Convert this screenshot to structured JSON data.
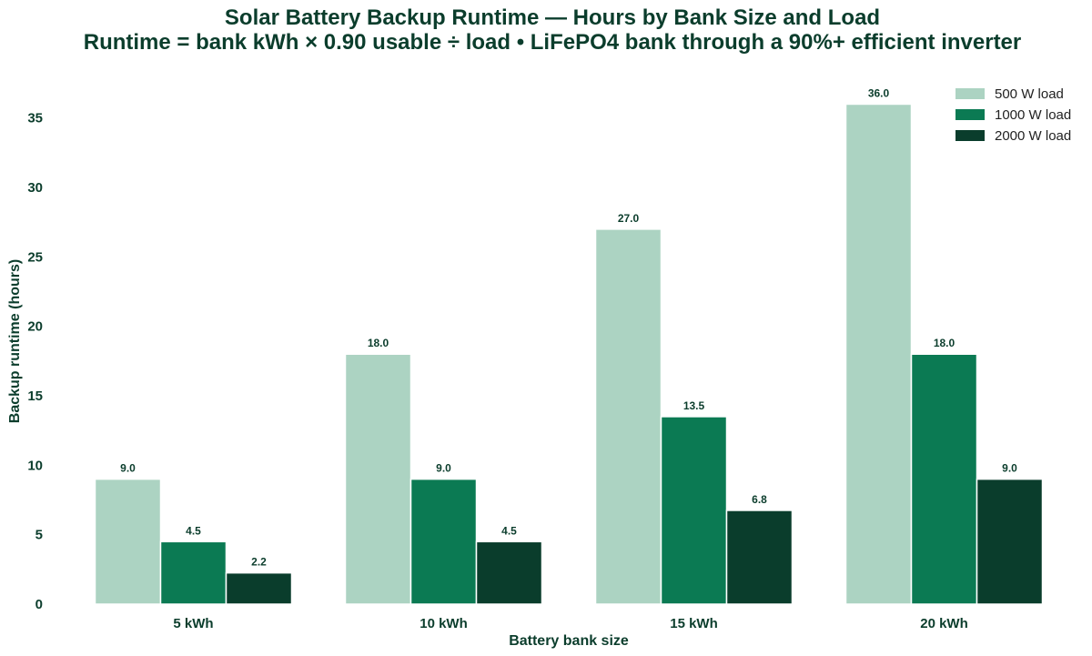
{
  "chart_data": {
    "type": "bar",
    "title": "Solar Battery Backup Runtime — Hours by Bank Size and Load",
    "subtitle": "Runtime = bank kWh × 0.90 usable ÷ load  •  LiFePO4 bank through a 90%+ efficient inverter",
    "xlabel": "Battery bank size",
    "ylabel": "Backup runtime (hours)",
    "categories": [
      "5 kWh",
      "10 kWh",
      "15 kWh",
      "20 kWh"
    ],
    "ylim": [
      0,
      37.8
    ],
    "yticks": [
      0,
      5,
      10,
      15,
      20,
      25,
      30,
      35
    ],
    "grid": false,
    "legend_position": "top-right",
    "series": [
      {
        "name": "500 W load",
        "color": "#acd3c2",
        "values": [
          9.0,
          18.0,
          27.0,
          36.0
        ],
        "labels": [
          "9.0",
          "18.0",
          "27.0",
          "36.0"
        ]
      },
      {
        "name": "1000 W load",
        "color": "#0b7a53",
        "values": [
          4.5,
          9.0,
          13.5,
          18.0
        ],
        "labels": [
          "4.5",
          "9.0",
          "13.5",
          "18.0"
        ]
      },
      {
        "name": "2000 W load",
        "color": "#0a3d2c",
        "values": [
          2.25,
          4.5,
          6.75,
          9.0
        ],
        "labels": [
          "2.2",
          "4.5",
          "6.8",
          "9.0"
        ]
      }
    ]
  }
}
